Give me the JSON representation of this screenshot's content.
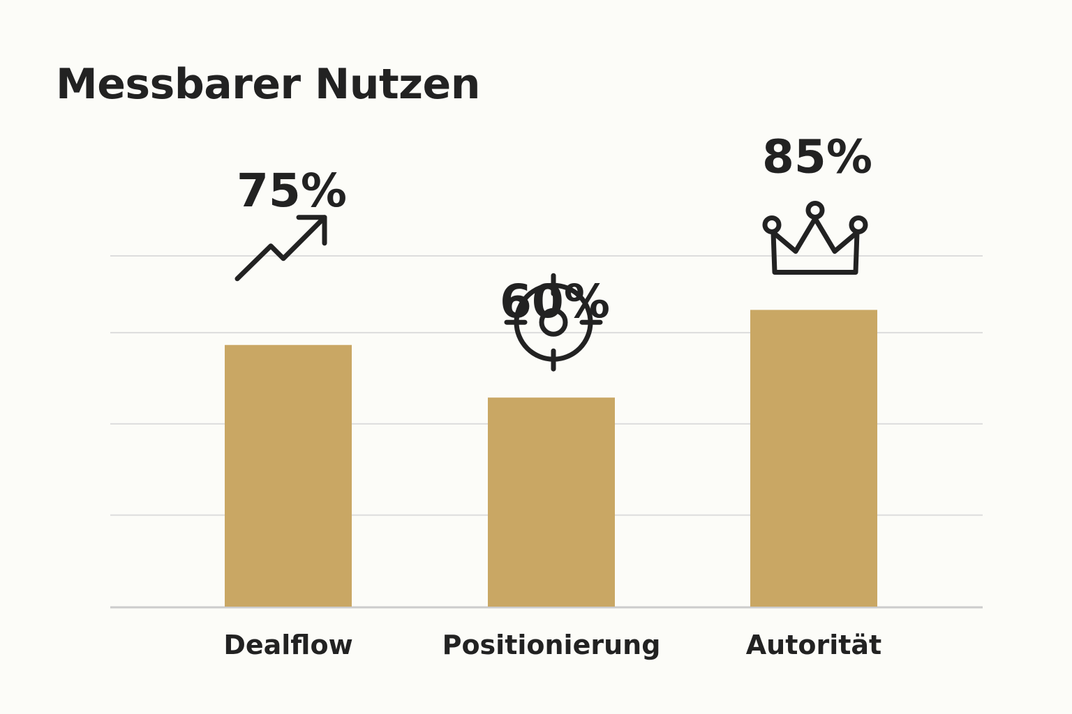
{
  "chart_data": {
    "type": "bar",
    "title": "Messbarer Nutzen",
    "categories": [
      "Dealflow",
      "Positionierung",
      "Autorität"
    ],
    "values": [
      75,
      60,
      85
    ],
    "value_labels": [
      "75%",
      "60%",
      "85%"
    ],
    "icons": [
      "trending-up-icon",
      "target-icon",
      "crown-icon"
    ],
    "gridlines": true,
    "ylim": [
      0,
      100
    ],
    "xlabel": "",
    "ylabel": ""
  },
  "colors": {
    "background": "#fcfcf8",
    "bar": "#c9a764",
    "text": "#222222",
    "grid": "#dddddd",
    "axis": "#cccccc"
  }
}
